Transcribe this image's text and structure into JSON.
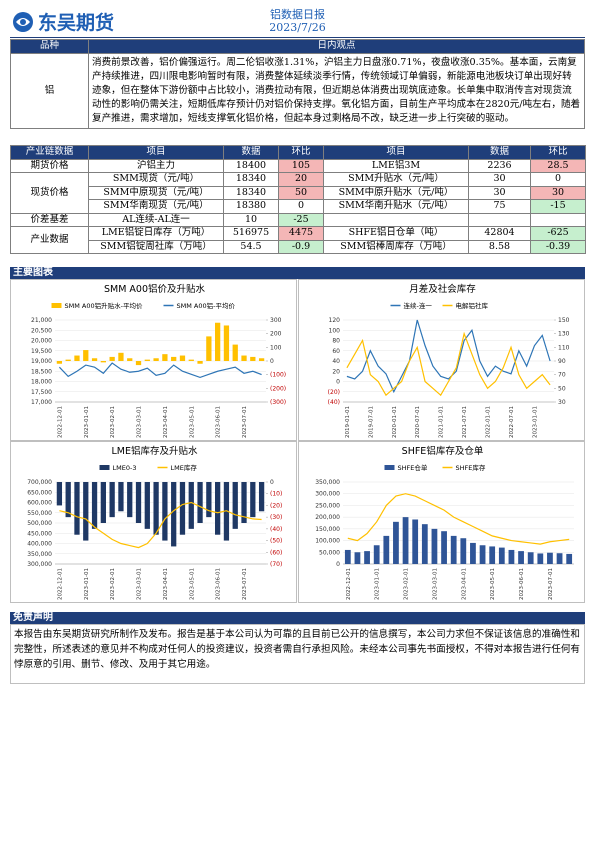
{
  "header": {
    "logo": "东吴期货",
    "title": "铝数据日报",
    "date": "2023/7/26"
  },
  "view": {
    "headers": [
      "品种",
      "日内观点"
    ],
    "variety": "铝",
    "text": "消费前景改善，铝价偏强运行。周二伦铝收涨1.31%，沪铝主力日盘涨0.71%，夜盘收涨0.35%。基本面，云南复产持续推进，四川限电影响暂时有限，消费整体延续淡季行情，传统领域订单偏弱，新能源电池板块订单出现好转迹象，但在整体下游份额中占比较小，消费拉动有限，但近期总体消费出现筑底迹象。长单集中取消传言对现货流动性的影响仍需关注，短期低库存预计仍对铝价保持支撑。氧化铝方面，目前生产平均成本在2820元/吨左右，随着复产推进，需求增加，短线支撑氧化铝价格，但起本身过剩格局不改，缺乏进一步上行突破的驱动。"
  },
  "table": {
    "headers": [
      "产业链数据",
      "项目",
      "数据",
      "环比",
      "项目",
      "数据",
      "环比"
    ],
    "rows": [
      {
        "group": "期货价格",
        "left": [
          "沪铝主力",
          18400,
          105
        ],
        "right": [
          "LME铝3M",
          2236,
          28.5
        ]
      },
      {
        "group": "现货价格",
        "left": [
          "SMM现货（元/吨）",
          18340,
          20
        ],
        "right": [
          "SMM升贴水（元/吨）",
          30,
          0
        ]
      },
      {
        "left": [
          "SMM中原现货（元/吨）",
          18340,
          50
        ],
        "right": [
          "SMM中原升贴水（元/吨）",
          30,
          30
        ]
      },
      {
        "left": [
          "SMM华南现货（元/吨）",
          18380,
          0
        ],
        "right": [
          "SMM华南升贴水（元/吨）",
          75,
          -15
        ]
      },
      {
        "group": "价差基差",
        "left": [
          "AL连续-AL连一",
          10,
          -25
        ]
      },
      {
        "group": "产业数据",
        "left": [
          "LME铝锭日库存（万吨）",
          516975,
          4475
        ],
        "right": [
          "SHFE铝日仓单（吨）",
          42804,
          -625
        ]
      },
      {
        "left": [
          "SMM铝锭周社库（万吨）",
          54.5,
          -0.9
        ],
        "right": [
          "SMM铝棒周库存（万吨）",
          8.58,
          -0.39
        ]
      }
    ]
  },
  "charts_section": "主要图表",
  "chart_data": [
    {
      "type": "combo",
      "title": "SMM A00铝价及升贴水",
      "categories": [
        "2022-12-01",
        null,
        null,
        "2023-01-01",
        null,
        null,
        "2023-02-01",
        null,
        null,
        "2023-03-01",
        null,
        null,
        "2023-04-01",
        null,
        null,
        "2023-05-01",
        null,
        null,
        "2023-06-01",
        null,
        null,
        "2023-07-01",
        null,
        null
      ],
      "series": [
        {
          "name": "SMM A00铝升贴水-平均价",
          "type": "bar",
          "axis": "y2",
          "color": "#ffc000",
          "values": [
            -20,
            10,
            40,
            80,
            20,
            -10,
            30,
            60,
            20,
            -30,
            10,
            20,
            50,
            30,
            40,
            10,
            -20,
            180,
            280,
            260,
            120,
            40,
            30,
            20
          ]
        },
        {
          "name": "SMM A00铝-平均价",
          "type": "line",
          "color": "#2e75b6",
          "values": [
            18700,
            18250,
            18500,
            18800,
            18700,
            18400,
            18900,
            18600,
            18450,
            18500,
            18650,
            18300,
            18400,
            18800,
            18500,
            18350,
            18200,
            18350,
            18500,
            18600,
            18700,
            18400,
            18500,
            18340
          ]
        }
      ],
      "ylim": [
        17000,
        21000
      ],
      "yticks": [
        {
          "value": 17000,
          "label": "17,000"
        },
        {
          "value": 17500,
          "label": "17,500"
        },
        {
          "value": 18000,
          "label": "18,000"
        },
        {
          "value": 18500,
          "label": "18,500"
        },
        {
          "value": 19000,
          "label": "19,000"
        },
        {
          "value": 19500,
          "label": "19,500"
        },
        {
          "value": 20000,
          "label": "20,000"
        },
        {
          "value": 20500,
          "label": "20,500"
        },
        {
          "value": 21000,
          "label": "21,000"
        }
      ],
      "y2lim": [
        -300,
        300
      ],
      "y2ticks": [
        {
          "value": -300,
          "label": "(300)"
        },
        {
          "value": -200,
          "label": "(200)"
        },
        {
          "value": -100,
          "label": "(100)"
        },
        0,
        100,
        200,
        300
      ]
    },
    {
      "type": "combo",
      "title": "月差及社会库存",
      "categories": [
        "2019-01-01",
        null,
        null,
        "2019-07-01",
        null,
        null,
        "2020-01-01",
        null,
        null,
        "2020-07-01",
        null,
        null,
        "2021-01-01",
        null,
        null,
        "2021-07-01",
        null,
        null,
        "2022-01-01",
        null,
        null,
        "2022-07-01",
        null,
        null,
        "2023-01-01",
        null,
        null
      ],
      "series": [
        {
          "name": "连续-连一",
          "type": "line",
          "color": "#2e75b6",
          "values": [
            10,
            5,
            20,
            60,
            30,
            15,
            -20,
            10,
            40,
            120,
            70,
            30,
            10,
            5,
            20,
            80,
            100,
            40,
            10,
            30,
            20,
            15,
            60,
            30,
            70,
            90,
            40
          ]
        },
        {
          "name": "电解铝社库",
          "type": "line",
          "axis": "y2",
          "color": "#ffc000",
          "values": [
            80,
            100,
            120,
            70,
            60,
            40,
            50,
            60,
            90,
            110,
            60,
            50,
            40,
            60,
            80,
            130,
            100,
            70,
            50,
            60,
            80,
            110,
            70,
            50,
            60,
            70,
            55
          ]
        }
      ],
      "ylim": [
        -40,
        120
      ],
      "yticks": [
        {
          "value": -40,
          "label": "(40)"
        },
        {
          "value": -20,
          "label": "(20)"
        },
        0,
        20,
        40,
        60,
        80,
        100,
        120
      ],
      "y2lim": [
        30,
        150
      ],
      "y2ticks": [
        30,
        50,
        70,
        90,
        110,
        130,
        150
      ]
    },
    {
      "type": "combo",
      "title": "LME铝库存及升贴水",
      "categories": [
        "2022-12-01",
        null,
        null,
        "2023-01-01",
        null,
        null,
        "2023-02-01",
        null,
        null,
        "2023-03-01",
        null,
        null,
        "2023-04-01",
        null,
        null,
        "2023-05-01",
        null,
        null,
        "2023-06-01",
        null,
        null,
        "2023-07-01",
        null,
        null
      ],
      "series": [
        {
          "name": "LME0-3",
          "type": "bar",
          "axis": "y2",
          "color": "#1f3864",
          "values": [
            -20,
            -30,
            -45,
            -50,
            -40,
            -35,
            -30,
            -25,
            -30,
            -35,
            -40,
            -45,
            -50,
            -55,
            -45,
            -40,
            -35,
            -30,
            -45,
            -50,
            -40,
            -35,
            -30,
            -25
          ]
        },
        {
          "name": "LME库存",
          "type": "line",
          "color": "#ffc000",
          "values": [
            560000,
            550000,
            530000,
            520000,
            480000,
            450000,
            420000,
            400000,
            390000,
            380000,
            400000,
            450000,
            520000,
            560000,
            590000,
            600000,
            580000,
            560000,
            550000,
            560000,
            540000,
            530000,
            520000,
            517000
          ]
        }
      ],
      "ylim": [
        300000,
        700000
      ],
      "yticks": [
        {
          "value": 300000,
          "label": "300,000"
        },
        {
          "value": 350000,
          "label": "350,000"
        },
        {
          "value": 400000,
          "label": "400,000"
        },
        {
          "value": 450000,
          "label": "450,000"
        },
        {
          "value": 500000,
          "label": "500,000"
        },
        {
          "value": 550000,
          "label": "550,000"
        },
        {
          "value": 600000,
          "label": "600,000"
        },
        {
          "value": 650000,
          "label": "650,000"
        },
        {
          "value": 700000,
          "label": "700,000"
        }
      ],
      "y2lim": [
        -70,
        0
      ],
      "y2ticks": [
        {
          "value": -70,
          "label": "(70)"
        },
        {
          "value": -60,
          "label": "(60)"
        },
        {
          "value": -50,
          "label": "(50)"
        },
        {
          "value": -40,
          "label": "(40)"
        },
        {
          "value": -30,
          "label": "(30)"
        },
        {
          "value": -20,
          "label": "(20)"
        },
        {
          "value": -10,
          "label": "(10)"
        },
        0
      ]
    },
    {
      "type": "combo",
      "title": "SHFE铝库存及仓单",
      "categories": [
        "2022-12-01",
        null,
        null,
        "2023-01-01",
        null,
        null,
        "2023-02-01",
        null,
        null,
        "2023-03-01",
        null,
        null,
        "2023-04-01",
        null,
        null,
        "2023-05-01",
        null,
        null,
        "2023-06-01",
        null,
        null,
        "2023-07-01",
        null,
        null
      ],
      "series": [
        {
          "name": "SHFE仓单",
          "type": "bar",
          "color": "#2f5597",
          "values": [
            60000,
            50000,
            55000,
            80000,
            120000,
            180000,
            200000,
            190000,
            170000,
            150000,
            140000,
            120000,
            110000,
            90000,
            80000,
            75000,
            70000,
            60000,
            55000,
            50000,
            45000,
            48000,
            46000,
            43000
          ]
        },
        {
          "name": "SHFE库存",
          "type": "line",
          "color": "#ffc000",
          "values": [
            110000,
            100000,
            130000,
            180000,
            250000,
            290000,
            300000,
            290000,
            270000,
            250000,
            230000,
            200000,
            180000,
            160000,
            140000,
            120000,
            110000,
            100000,
            95000,
            90000,
            85000,
            95000,
            100000,
            105000
          ]
        }
      ],
      "ylim": [
        0,
        350000
      ],
      "yticks": [
        0,
        {
          "value": 50000,
          "label": "50,000"
        },
        {
          "value": 100000,
          "label": "100,000"
        },
        {
          "value": 150000,
          "label": "150,000"
        },
        {
          "value": 200000,
          "label": "200,000"
        },
        {
          "value": 250000,
          "label": "250,000"
        },
        {
          "value": 300000,
          "label": "300,000"
        },
        {
          "value": 350000,
          "label": "350,000"
        }
      ]
    }
  ],
  "disclaimer": {
    "title": "免责声明",
    "text": "本报告由东吴期货研究所制作及发布。报告是基于本公司认为可靠的且目前已公开的信息撰写，本公司力求但不保证该信息的准确性和完整性，所述表述的意见并不构成对任何人的投资建议，投资者需自行承担风险。未经本公司事先书面授权，不得对本报告进行任何有悖原意的引用、删节、修改、及用于其它用途。"
  }
}
